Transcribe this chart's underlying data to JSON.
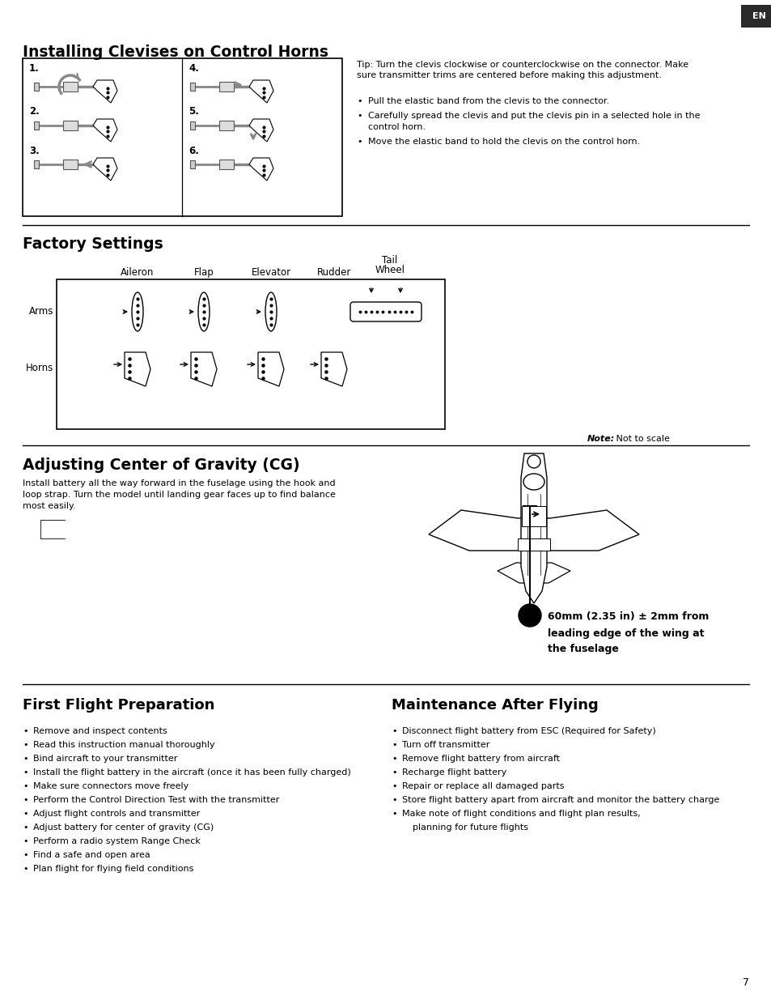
{
  "page_num": "7",
  "bg_color": "#ffffff",
  "text_color": "#000000",
  "en_tab": {
    "text": "EN",
    "bg": "#2a2a2a",
    "fg": "#ffffff"
  },
  "section1_title": "Installing Clevises on Control Horns",
  "tip_text": "Tip: Turn the clevis clockwise or counterclockwise on the connector. Make\nsure transmitter trims are centered before making this adjustment.",
  "bullet1": [
    "Pull the elastic band from the clevis to the connector.",
    "Carefully spread the clevis and put the clevis pin in a selected hole in the\n    control horn.",
    "Move the elastic band to hold the clevis on the control horn."
  ],
  "section2_title": "Factory Settings",
  "col_labels": [
    "Aileron",
    "Flap",
    "Elevator",
    "Rudder"
  ],
  "tail_label1": "Tail",
  "tail_label2": "Wheel",
  "row_label_arms": "Arms",
  "row_label_horns": "Horns",
  "note_bold": "Note:",
  "note_text": " Not to scale",
  "section3_title": "Adjusting Center of Gravity (CG)",
  "cg_body_text": "Install battery all the way forward in the fuselage using the hook and\nloop strap. Turn the model until landing gear faces up to find balance\nmost easily.",
  "cg_caption_bold": "60mm (2.35 in) ± 2mm from",
  "cg_caption2": "leading edge of the wing at",
  "cg_caption3": "the fuselage",
  "section4_title": "First Flight Preparation",
  "ffp_bullets": [
    "Remove and inspect contents",
    "Read this instruction manual thoroughly",
    "Bind aircraft to your transmitter",
    "Install the flight battery in the aircraft (once it has been fully charged)",
    "Make sure connectors move freely",
    "Perform the Control Direction Test with the transmitter",
    "Adjust flight controls and transmitter",
    "Adjust battery for center of gravity (CG)",
    "Perform a radio system Range Check",
    "Find a safe and open area",
    "Plan flight for flying field conditions"
  ],
  "section5_title": "Maintenance After Flying",
  "maf_bullets": [
    "Disconnect flight battery from ESC (Required for Safety)",
    "Turn off transmitter",
    "Remove flight battery from aircraft",
    "Recharge flight battery",
    "Repair or replace all damaged parts",
    "Store flight battery apart from aircraft and monitor the battery charge",
    "Make note of flight conditions and flight plan results,",
    "    planning for future flights"
  ]
}
